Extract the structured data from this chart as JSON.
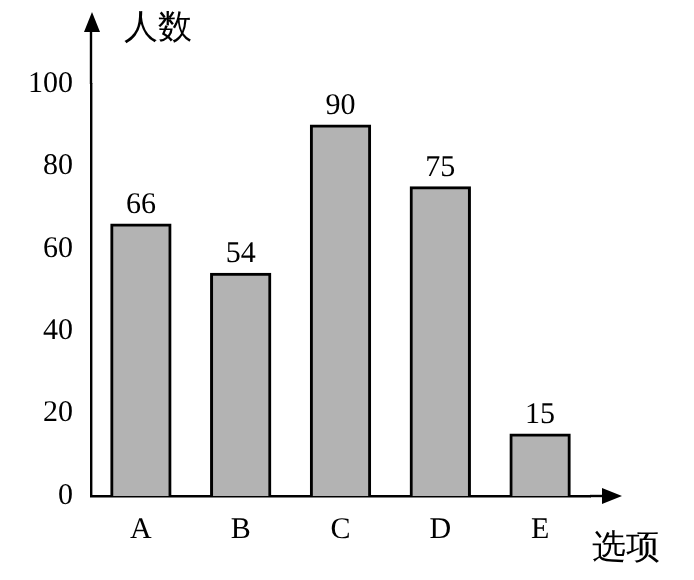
{
  "chart_data": {
    "type": "bar",
    "xlabel": "选项",
    "ylabel": "人数",
    "categories": [
      "A",
      "B",
      "C",
      "D",
      "E"
    ],
    "values": [
      66,
      54,
      90,
      75,
      15
    ],
    "color": "#b3b3b3",
    "ylim": [
      0,
      100
    ],
    "yticks": [
      0,
      20,
      40,
      60,
      80,
      100
    ],
    "grid": false,
    "legend": false,
    "data_labels": true
  }
}
